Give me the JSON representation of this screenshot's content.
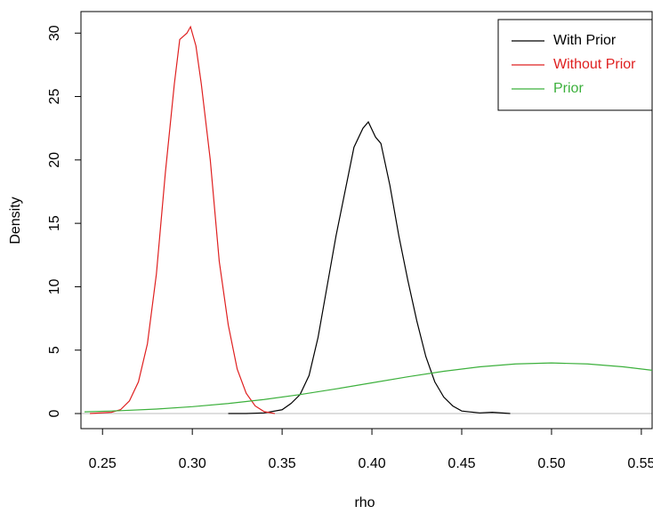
{
  "chart_data": {
    "type": "line",
    "x_label": "rho",
    "y_label": "Density",
    "xlim": [
      0.238,
      0.556
    ],
    "ylim": [
      -1.19,
      31.7
    ],
    "xticks": [
      0.25,
      {
        "value": 0.3,
        "label": "0.30"
      },
      0.35,
      {
        "value": 0.4,
        "label": "0.40"
      },
      0.45,
      {
        "value": 0.5,
        "label": "0.50"
      },
      0.55
    ],
    "yticks": [
      0,
      5,
      10,
      15,
      20,
      25,
      30
    ],
    "hline": 0,
    "legend": "topright",
    "series": [
      {
        "name": "With Prior",
        "color": "#000000",
        "x": [
          0.32,
          0.33,
          0.34,
          0.35,
          0.355,
          0.36,
          0.365,
          0.37,
          0.375,
          0.38,
          0.385,
          0.39,
          0.395,
          0.398,
          0.402,
          0.405,
          0.41,
          0.415,
          0.42,
          0.425,
          0.43,
          0.435,
          0.44,
          0.445,
          0.45,
          0.46,
          0.467,
          0.477
        ],
        "values": [
          0,
          0,
          0.05,
          0.3,
          0.8,
          1.5,
          3,
          6,
          10,
          14,
          17.5,
          21,
          22.5,
          23,
          21.8,
          21.3,
          18,
          14,
          10.5,
          7.3,
          4.5,
          2.5,
          1.3,
          0.6,
          0.2,
          0.05,
          0.1,
          0
        ]
      },
      {
        "name": "Without Prior",
        "color": "#df2020",
        "x": [
          0.243,
          0.255,
          0.26,
          0.265,
          0.27,
          0.275,
          0.28,
          0.285,
          0.29,
          0.293,
          0.297,
          0.299,
          0.302,
          0.305,
          0.31,
          0.315,
          0.32,
          0.325,
          0.33,
          0.335,
          0.34,
          0.346
        ],
        "values": [
          0,
          0.1,
          0.3,
          1.0,
          2.5,
          5.5,
          11,
          19,
          26,
          29.5,
          30,
          30.5,
          29,
          26,
          20,
          12,
          7,
          3.5,
          1.6,
          0.6,
          0.15,
          0
        ]
      },
      {
        "name": "Prior",
        "color": "#3cb03c",
        "x": [
          0.24,
          0.26,
          0.28,
          0.3,
          0.32,
          0.34,
          0.36,
          0.38,
          0.4,
          0.42,
          0.44,
          0.46,
          0.48,
          0.5,
          0.52,
          0.54,
          0.556
        ],
        "values": [
          0.136,
          0.224,
          0.355,
          0.54,
          0.79,
          1.109,
          1.497,
          1.942,
          2.42,
          2.897,
          3.332,
          3.683,
          3.91,
          3.989,
          3.91,
          3.683,
          3.41
        ]
      }
    ]
  }
}
